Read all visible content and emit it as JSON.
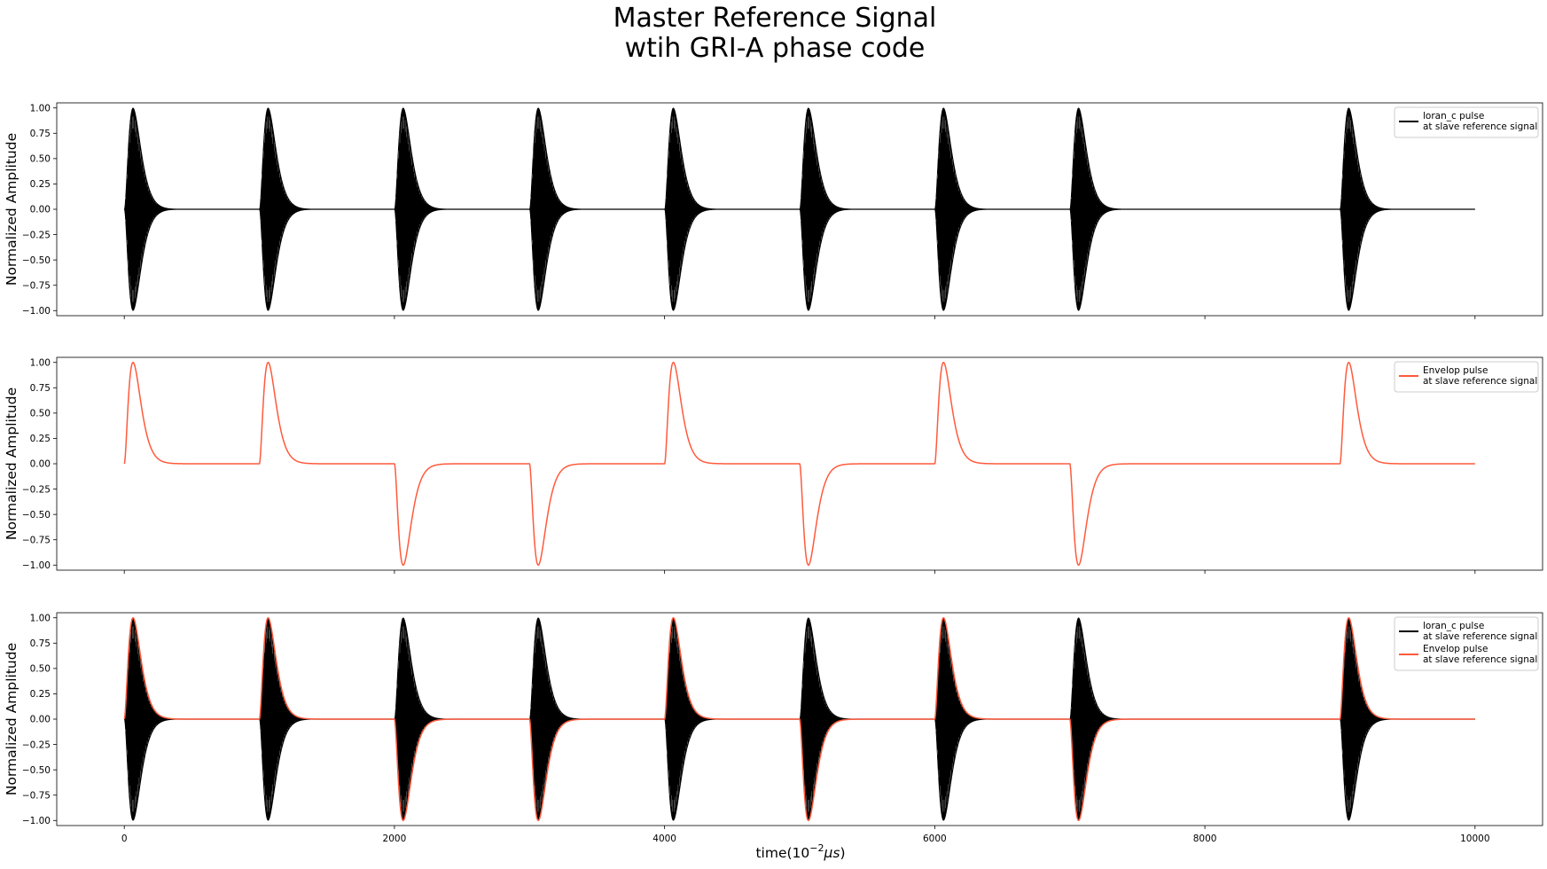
{
  "figure": {
    "title_line1": "Master Reference Signal",
    "title_line2": "wtih GRI-A phase code",
    "xlabel_prefix": "time(10",
    "xlabel_exp": "−2",
    "xlabel_mu": "μ",
    "xlabel_s": "s",
    "xlabel_suffix": ")"
  },
  "colors": {
    "carrier": "#000000",
    "envelope": "#ff5a3c"
  },
  "chart_data": [
    {
      "type": "line",
      "title": "",
      "ylabel": "Normalized Amplitude",
      "xlim": [
        -500,
        10500
      ],
      "ylim": [
        -1.05,
        1.05
      ],
      "xticks": [
        0,
        2000,
        4000,
        6000,
        8000,
        10000
      ],
      "yticks": [
        1.0,
        0.75,
        0.5,
        0.25,
        0.0,
        -0.25,
        -0.5,
        -0.75,
        -1.0
      ],
      "ytick_labels": [
        "1.00",
        "0.75",
        "0.50",
        "0.25",
        "0.00",
        "−0.25",
        "−0.50",
        "−0.75",
        "−1.00"
      ],
      "xtick_labels_visible": false,
      "legend_position": "top-right",
      "pulse_starts": [
        0,
        1000,
        2000,
        3000,
        4000,
        5000,
        6000,
        7000,
        9000
      ],
      "phase_code": [
        1,
        1,
        -1,
        -1,
        1,
        -1,
        1,
        -1,
        1
      ],
      "envelope_peak_offset": 65,
      "x_end": 10000,
      "series": [
        {
          "name_line1": "loran_c pulse",
          "name_line2": "at slave reference signal",
          "kind": "carrier"
        }
      ]
    },
    {
      "type": "line",
      "title": "",
      "ylabel": "Normalized Amplitude",
      "xlim": [
        -500,
        10500
      ],
      "ylim": [
        -1.05,
        1.05
      ],
      "xticks": [
        0,
        2000,
        4000,
        6000,
        8000,
        10000
      ],
      "yticks": [
        1.0,
        0.75,
        0.5,
        0.25,
        0.0,
        -0.25,
        -0.5,
        -0.75,
        -1.0
      ],
      "ytick_labels": [
        "1.00",
        "0.75",
        "0.50",
        "0.25",
        "0.00",
        "−0.25",
        "−0.50",
        "−0.75",
        "−1.00"
      ],
      "xtick_labels_visible": false,
      "legend_position": "top-right",
      "pulse_starts": [
        0,
        1000,
        2000,
        3000,
        4000,
        5000,
        6000,
        7000,
        9000
      ],
      "phase_code": [
        1,
        1,
        -1,
        -1,
        1,
        -1,
        1,
        -1,
        1
      ],
      "envelope_peak_offset": 65,
      "x_end": 10000,
      "series": [
        {
          "name_line1": "Envelop pulse",
          "name_line2": "at slave reference signal",
          "kind": "envelope"
        }
      ]
    },
    {
      "type": "line",
      "title": "",
      "ylabel": "Normalized Amplitude",
      "xlim": [
        -500,
        10500
      ],
      "ylim": [
        -1.05,
        1.05
      ],
      "xticks": [
        0,
        2000,
        4000,
        6000,
        8000,
        10000
      ],
      "xtick_labels": [
        "0",
        "2000",
        "4000",
        "6000",
        "8000",
        "10000"
      ],
      "yticks": [
        1.0,
        0.75,
        0.5,
        0.25,
        0.0,
        -0.25,
        -0.5,
        -0.75,
        -1.0
      ],
      "ytick_labels": [
        "1.00",
        "0.75",
        "0.50",
        "0.25",
        "0.00",
        "−0.25",
        "−0.50",
        "−0.75",
        "−1.00"
      ],
      "xtick_labels_visible": true,
      "legend_position": "top-right",
      "pulse_starts": [
        0,
        1000,
        2000,
        3000,
        4000,
        5000,
        6000,
        7000,
        9000
      ],
      "phase_code": [
        1,
        1,
        -1,
        -1,
        1,
        -1,
        1,
        -1,
        1
      ],
      "envelope_peak_offset": 65,
      "x_end": 10000,
      "series": [
        {
          "name_line1": "loran_c pulse",
          "name_line2": "at slave reference signal",
          "kind": "carrier"
        },
        {
          "name_line1": "Envelop pulse",
          "name_line2": "at slave reference signal",
          "kind": "envelope"
        }
      ]
    }
  ]
}
